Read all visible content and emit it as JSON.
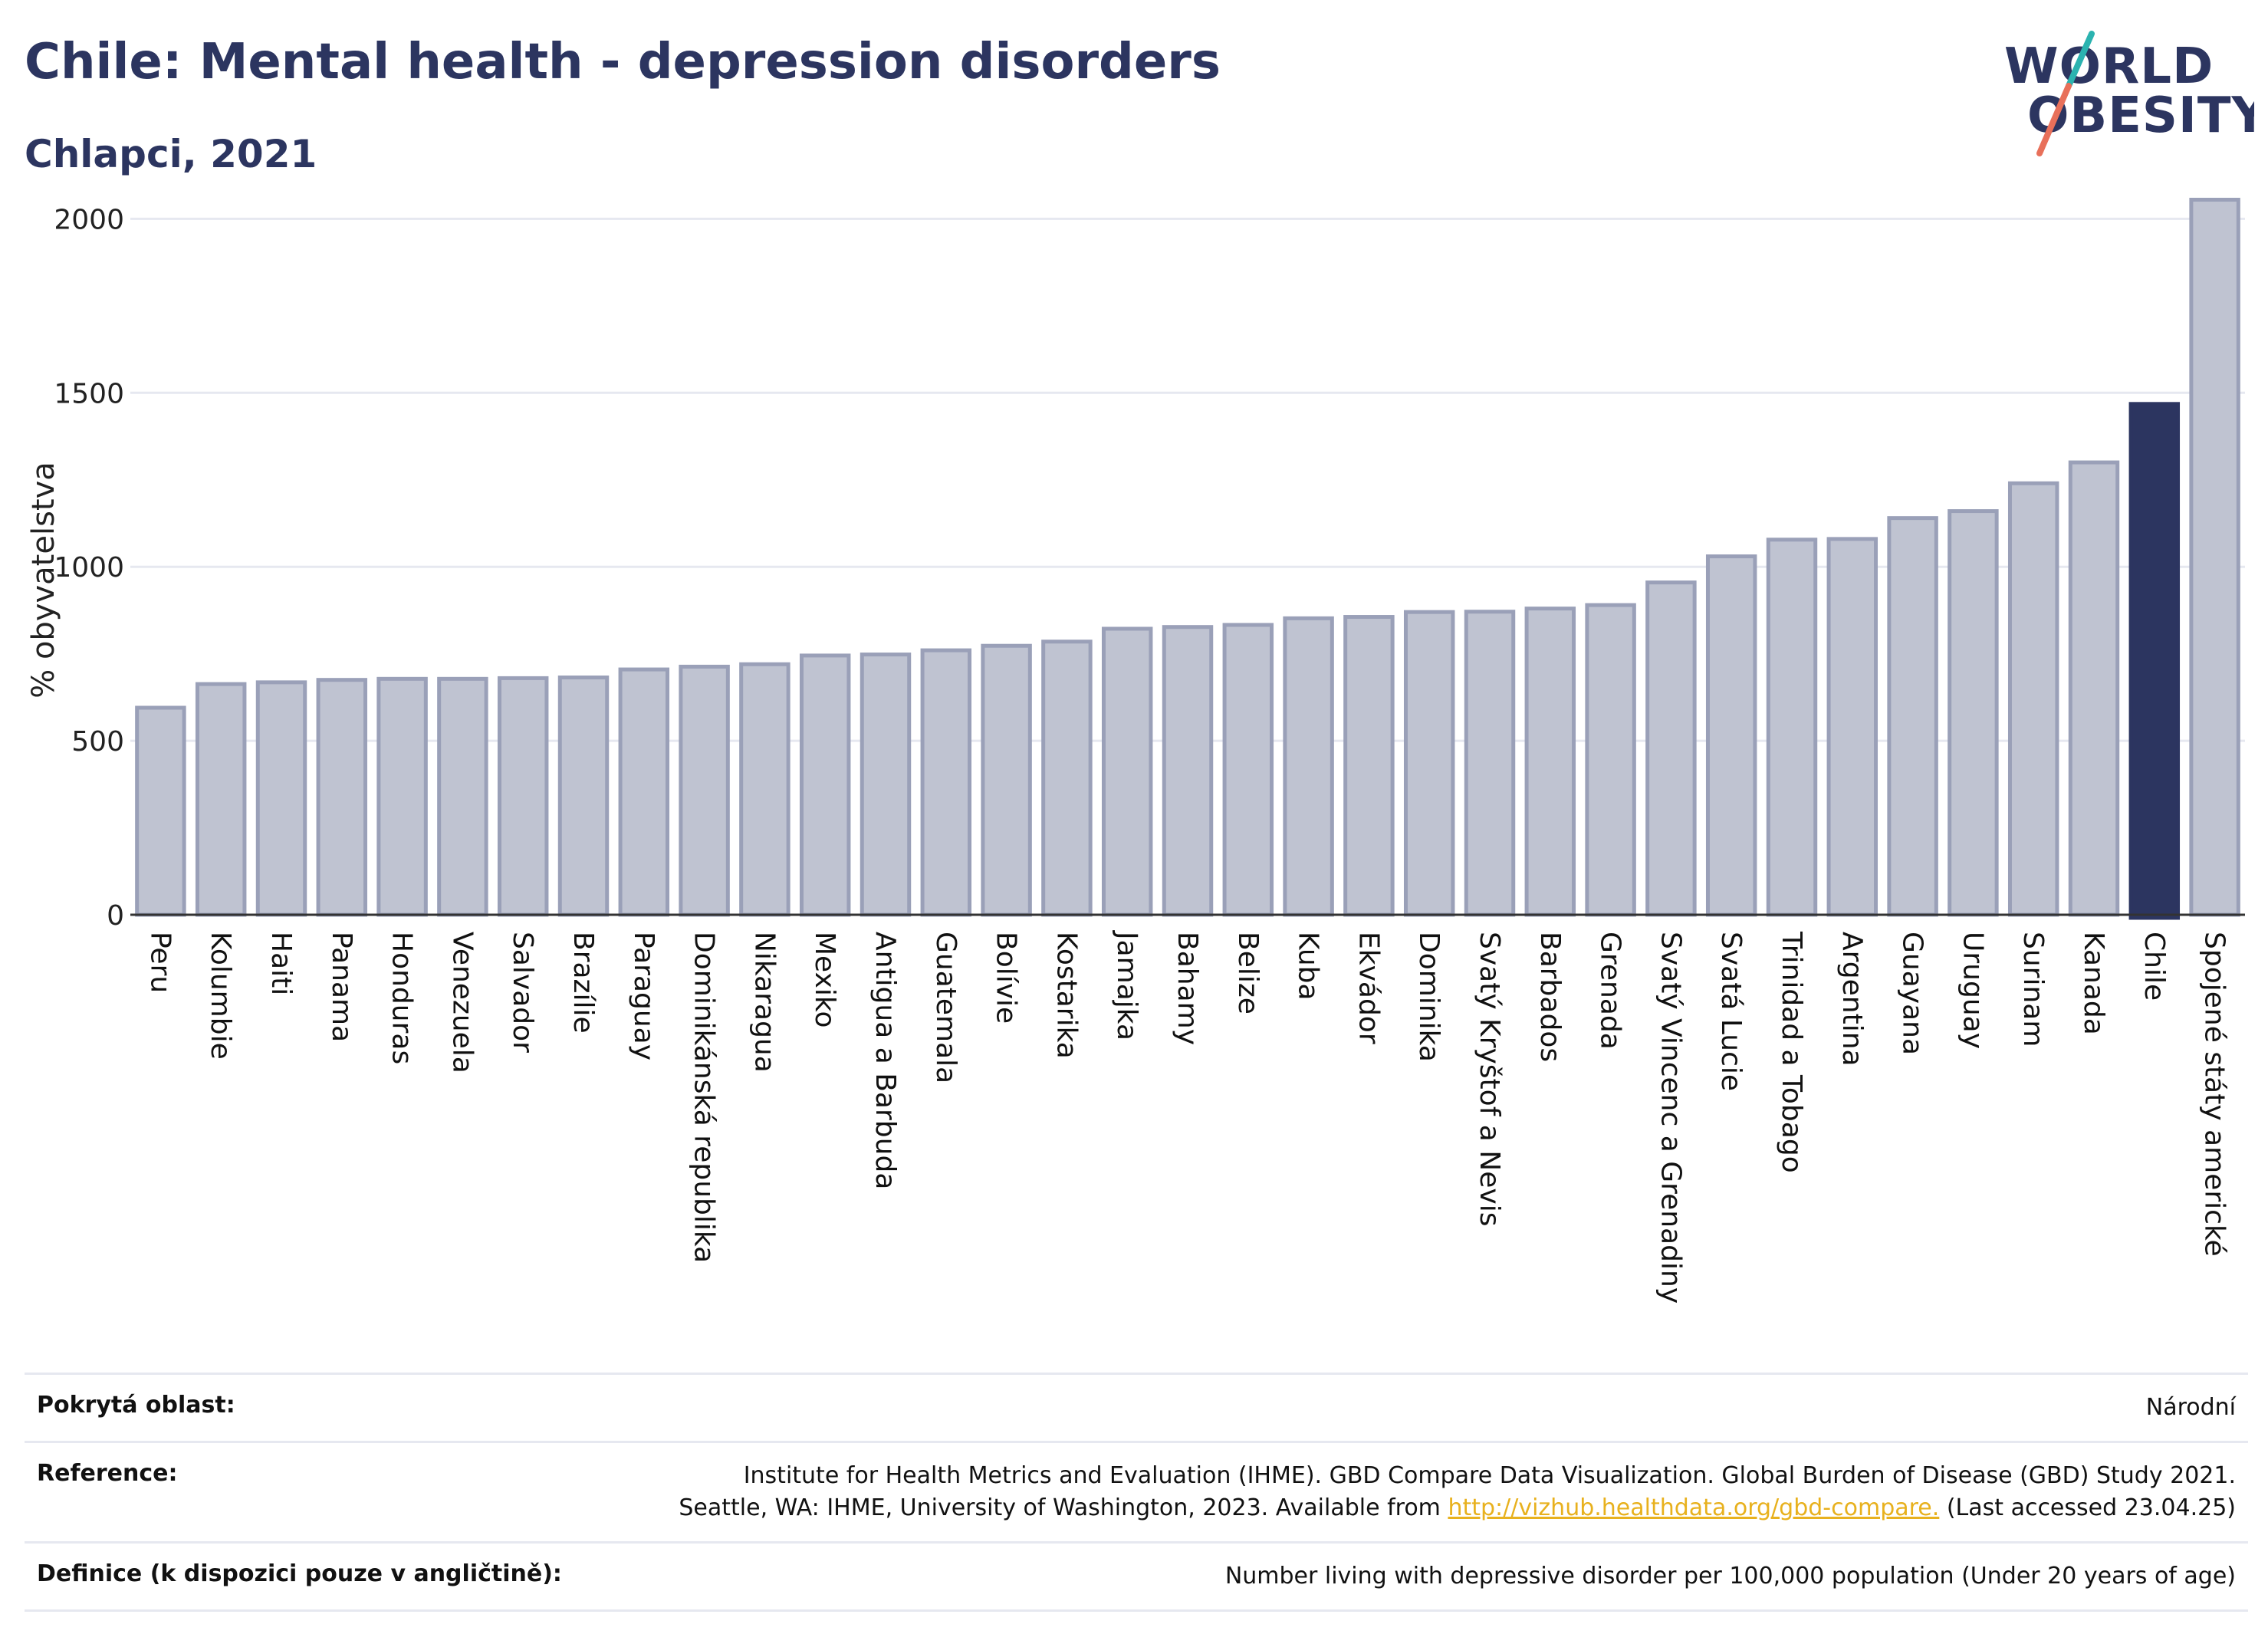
{
  "header": {
    "title": "Chile: Mental health - depression disorders",
    "subtitle": "Chlapci, 2021"
  },
  "logo": {
    "line1": "WORLD",
    "line2": "OBESITY",
    "colors": {
      "text": "#2c3560",
      "slash_top": "#2bb3b0",
      "slash_bottom": "#e8705a"
    }
  },
  "colors": {
    "bar": "#bfc3d1",
    "bar_border": "#9aa0b8",
    "highlight": "#2c3560",
    "grid": "#e6e8f0",
    "axis": "#333333"
  },
  "chart_data": {
    "type": "bar",
    "ylabel": "% obyvatelstva",
    "ylim": [
      0,
      2100
    ],
    "yticks": [
      0,
      500,
      1000,
      1500,
      2000
    ],
    "grid": true,
    "highlight": "Chile",
    "categories": [
      "Peru",
      "Kolumbie",
      "Haiti",
      "Panama",
      "Honduras",
      "Venezuela",
      "Salvador",
      "Brazílie",
      "Paraguay",
      "Dominikánská republika",
      "Nikaragua",
      "Mexiko",
      "Antigua a Barbuda",
      "Guatemala",
      "Bolívie",
      "Kostarika",
      "Jamajka",
      "Bahamy",
      "Belize",
      "Kuba",
      "Ekvádor",
      "Dominika",
      "Svatý Kryštof a Nevis",
      "Barbados",
      "Grenada",
      "Svatý Vincenc a Grenadiny",
      "Svatá Lucie",
      "Trinidad a Tobago",
      "Argentina",
      "Guayana",
      "Uruguay",
      "Surinam",
      "Kanada",
      "Chile",
      "Spojené státy americké"
    ],
    "values": [
      595,
      663,
      668,
      675,
      678,
      678,
      680,
      682,
      705,
      713,
      720,
      745,
      748,
      760,
      773,
      785,
      822,
      827,
      833,
      852,
      856,
      870,
      871,
      880,
      890,
      955,
      1030,
      1078,
      1080,
      1140,
      1160,
      1240,
      1300,
      1468,
      2055
    ]
  },
  "meta": {
    "coverage_label": "Pokrytá oblast:",
    "coverage_value": "Národní",
    "reference_label": "Reference:",
    "reference_line1": "Institute for Health Metrics and Evaluation (IHME). GBD Compare Data Visualization. Global Burden of Disease (GBD) Study 2021.",
    "reference_line2_pre": "Seattle, WA: IHME, University of Washington, 2023. Available from ",
    "reference_link": "http://vizhub.healthdata.org/gbd-compare.",
    "reference_line2_post": " (Last accessed 23.04.25)",
    "definition_label": "Definice (k dispozici pouze v angličtině):",
    "definition_value": "Number living with depressive disorder per 100,000 population (Under 20 years of age)"
  }
}
